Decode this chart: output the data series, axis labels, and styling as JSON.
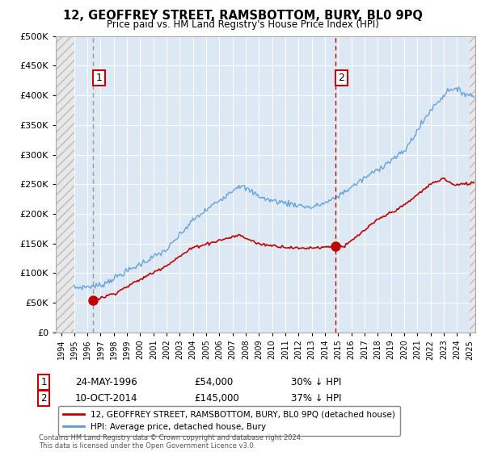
{
  "title": "12, GEOFFREY STREET, RAMSBOTTOM, BURY, BL0 9PQ",
  "subtitle": "Price paid vs. HM Land Registry's House Price Index (HPI)",
  "legend_line1": "12, GEOFFREY STREET, RAMSBOTTOM, BURY, BL0 9PQ (detached house)",
  "legend_line2": "HPI: Average price, detached house, Bury",
  "sale1_date": "24-MAY-1996",
  "sale1_price": 54000,
  "sale1_pct": "30%",
  "sale1_year": 1996.39,
  "sale2_date": "10-OCT-2014",
  "sale2_price": 145000,
  "sale2_pct": "37%",
  "sale2_year": 2014.77,
  "hpi_color": "#5b9bd5",
  "property_color": "#c00000",
  "background_color": "#dce9f5",
  "hatch_facecolor": "#e8e8e8",
  "hatch_edgecolor": "#bbbbbb",
  "copyright_text": "Contains HM Land Registry data © Crown copyright and database right 2024.\nThis data is licensed under the Open Government Licence v3.0.",
  "ylim": [
    0,
    500000
  ],
  "xlim_start": 1993.6,
  "xlim_end": 2025.4,
  "hatch_left_end": 1995.0,
  "hatch_right_start": 2025.0
}
